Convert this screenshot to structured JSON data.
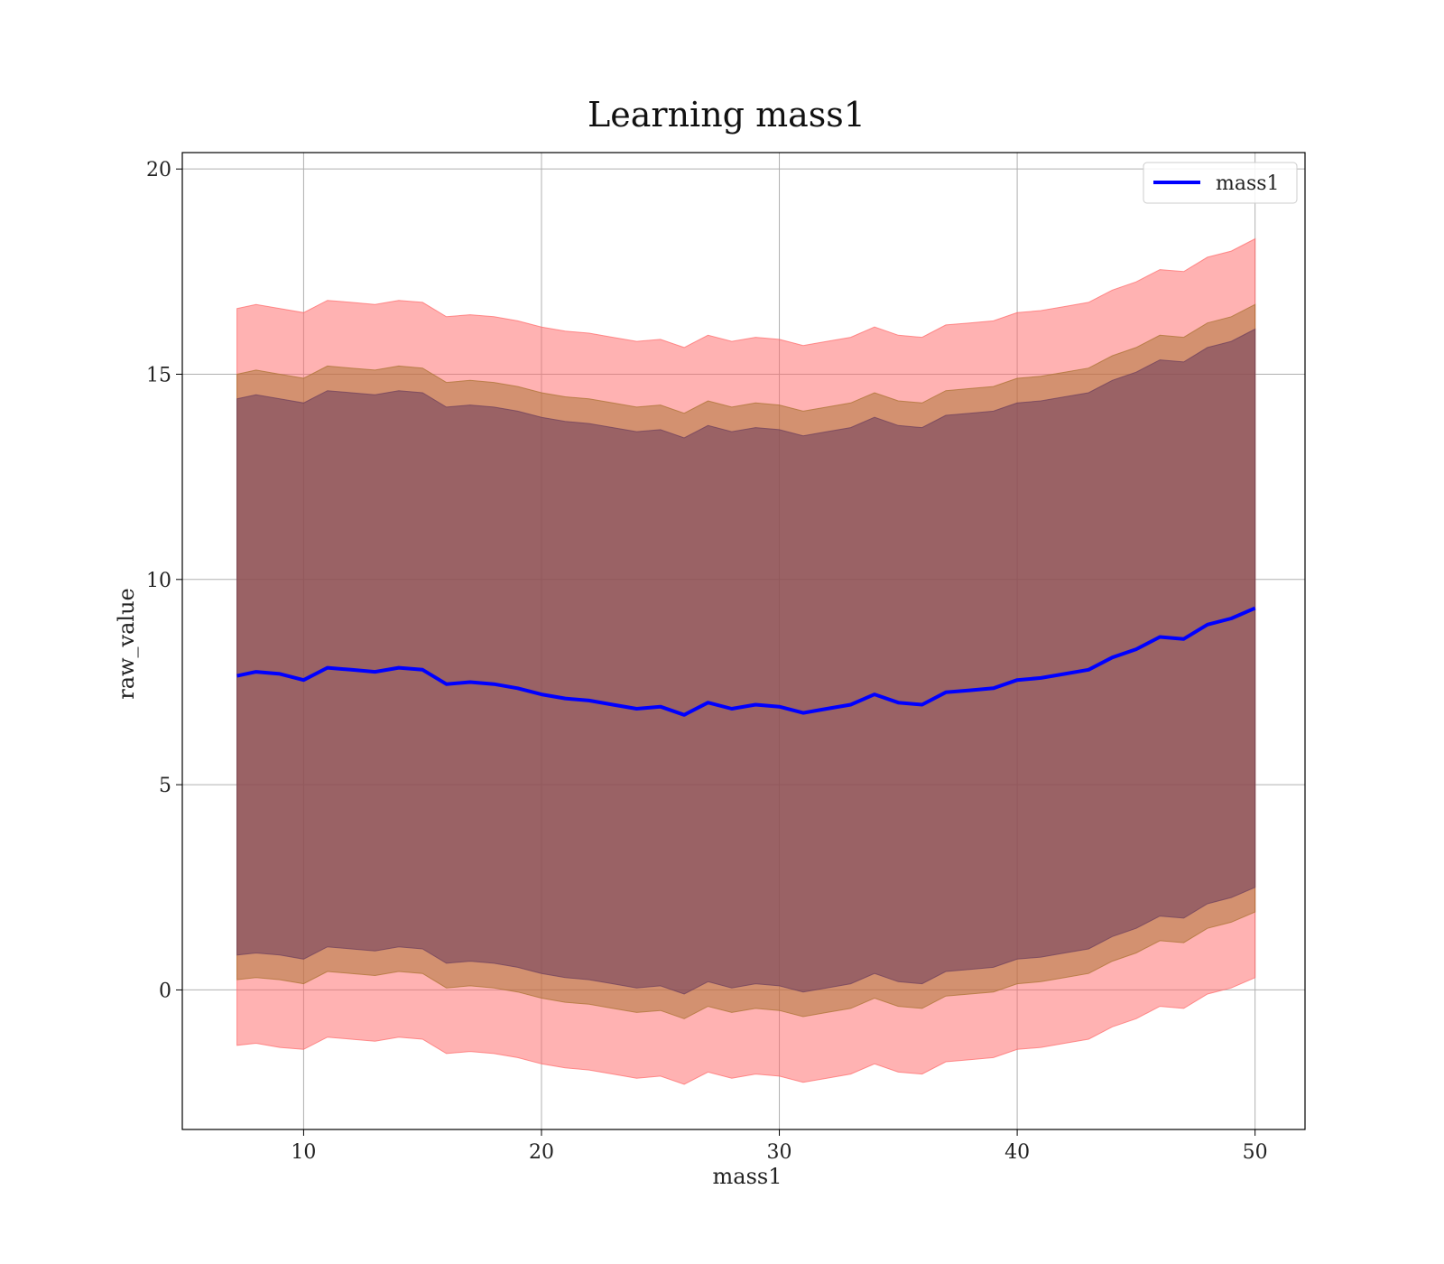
{
  "chart_data": {
    "type": "line",
    "title": "Learning mass1",
    "xlabel": "mass1",
    "ylabel": "raw_value",
    "xlim": [
      4.9,
      52.1
    ],
    "ylim": [
      -3.4,
      20.4
    ],
    "xticks": [
      10,
      20,
      30,
      40,
      50
    ],
    "yticks": [
      0,
      5,
      10,
      15,
      20
    ],
    "xtick_labels": [
      "10",
      "20",
      "30",
      "40",
      "50"
    ],
    "ytick_labels": [
      "0",
      "5",
      "10",
      "15",
      "20"
    ],
    "grid": true,
    "legend": {
      "placement": "top-right",
      "entries": [
        "mass1"
      ]
    },
    "x": [
      7.2,
      8,
      9,
      10,
      11,
      12,
      13,
      14,
      15,
      16,
      17,
      18,
      19,
      20,
      21,
      22,
      23,
      24,
      25,
      26,
      27,
      28,
      29,
      30,
      31,
      32,
      33,
      34,
      35,
      36,
      37,
      38,
      39,
      40,
      41,
      42,
      43,
      44,
      45,
      46,
      47,
      48,
      49,
      50
    ],
    "series": [
      {
        "name": "mass1",
        "color": "#0000ff",
        "values": [
          7.65,
          7.75,
          7.7,
          7.55,
          7.85,
          7.8,
          7.75,
          7.85,
          7.8,
          7.45,
          7.5,
          7.45,
          7.35,
          7.2,
          7.1,
          7.05,
          6.95,
          6.85,
          6.9,
          6.7,
          7.0,
          6.85,
          6.95,
          6.9,
          6.75,
          6.85,
          6.95,
          7.2,
          7.0,
          6.95,
          7.25,
          7.3,
          7.35,
          7.55,
          7.6,
          7.7,
          7.8,
          8.1,
          8.3,
          8.6,
          8.55,
          8.9,
          9.05,
          9.3
        ]
      }
    ],
    "bands": [
      {
        "name": "outer band",
        "color": "#ff6666",
        "opacity": 0.5,
        "lower": [
          -1.35,
          -1.3,
          -1.4,
          -1.45,
          -1.15,
          -1.2,
          -1.25,
          -1.15,
          -1.2,
          -1.55,
          -1.5,
          -1.55,
          -1.65,
          -1.8,
          -1.9,
          -1.95,
          -2.05,
          -2.15,
          -2.1,
          -2.3,
          -2.0,
          -2.15,
          -2.05,
          -2.1,
          -2.25,
          -2.15,
          -2.05,
          -1.8,
          -2.0,
          -2.05,
          -1.75,
          -1.7,
          -1.65,
          -1.45,
          -1.4,
          -1.3,
          -1.2,
          -0.9,
          -0.7,
          -0.4,
          -0.45,
          -0.1,
          0.05,
          0.3
        ],
        "upper": [
          16.6,
          16.7,
          16.6,
          16.5,
          16.8,
          16.75,
          16.7,
          16.8,
          16.75,
          16.4,
          16.45,
          16.4,
          16.3,
          16.15,
          16.05,
          16.0,
          15.9,
          15.8,
          15.85,
          15.65,
          15.95,
          15.8,
          15.9,
          15.85,
          15.7,
          15.8,
          15.9,
          16.15,
          15.95,
          15.9,
          16.2,
          16.25,
          16.3,
          16.5,
          16.55,
          16.65,
          16.75,
          17.05,
          17.25,
          17.55,
          17.5,
          17.85,
          18.0,
          18.3
        ]
      },
      {
        "name": "middle band",
        "color": "#a8702e",
        "opacity": 0.5,
        "lower": [
          0.25,
          0.3,
          0.25,
          0.15,
          0.45,
          0.4,
          0.35,
          0.45,
          0.4,
          0.05,
          0.1,
          0.05,
          -0.05,
          -0.2,
          -0.3,
          -0.35,
          -0.45,
          -0.55,
          -0.5,
          -0.7,
          -0.4,
          -0.55,
          -0.45,
          -0.5,
          -0.65,
          -0.55,
          -0.45,
          -0.2,
          -0.4,
          -0.45,
          -0.15,
          -0.1,
          -0.05,
          0.15,
          0.2,
          0.3,
          0.4,
          0.7,
          0.9,
          1.2,
          1.15,
          1.5,
          1.65,
          1.9
        ],
        "upper": [
          15.0,
          15.1,
          15.0,
          14.9,
          15.2,
          15.15,
          15.1,
          15.2,
          15.15,
          14.8,
          14.85,
          14.8,
          14.7,
          14.55,
          14.45,
          14.4,
          14.3,
          14.2,
          14.25,
          14.05,
          14.35,
          14.2,
          14.3,
          14.25,
          14.1,
          14.2,
          14.3,
          14.55,
          14.35,
          14.3,
          14.6,
          14.65,
          14.7,
          14.9,
          14.95,
          15.05,
          15.15,
          15.45,
          15.65,
          15.95,
          15.9,
          16.25,
          16.4,
          16.7
        ]
      },
      {
        "name": "inner band",
        "color": "#6b3d5c",
        "opacity": 0.55,
        "lower": [
          0.85,
          0.9,
          0.85,
          0.75,
          1.05,
          1.0,
          0.95,
          1.05,
          1.0,
          0.65,
          0.7,
          0.65,
          0.55,
          0.4,
          0.3,
          0.25,
          0.15,
          0.05,
          0.1,
          -0.1,
          0.2,
          0.05,
          0.15,
          0.1,
          -0.05,
          0.05,
          0.15,
          0.4,
          0.2,
          0.15,
          0.45,
          0.5,
          0.55,
          0.75,
          0.8,
          0.9,
          1.0,
          1.3,
          1.5,
          1.8,
          1.75,
          2.1,
          2.25,
          2.5
        ],
        "upper": [
          14.4,
          14.5,
          14.4,
          14.3,
          14.6,
          14.55,
          14.5,
          14.6,
          14.55,
          14.2,
          14.25,
          14.2,
          14.1,
          13.95,
          13.85,
          13.8,
          13.7,
          13.6,
          13.65,
          13.45,
          13.75,
          13.6,
          13.7,
          13.65,
          13.5,
          13.6,
          13.7,
          13.95,
          13.75,
          13.7,
          14.0,
          14.05,
          14.1,
          14.3,
          14.35,
          14.45,
          14.55,
          14.85,
          15.05,
          15.35,
          15.3,
          15.65,
          15.8,
          16.1
        ]
      }
    ]
  }
}
